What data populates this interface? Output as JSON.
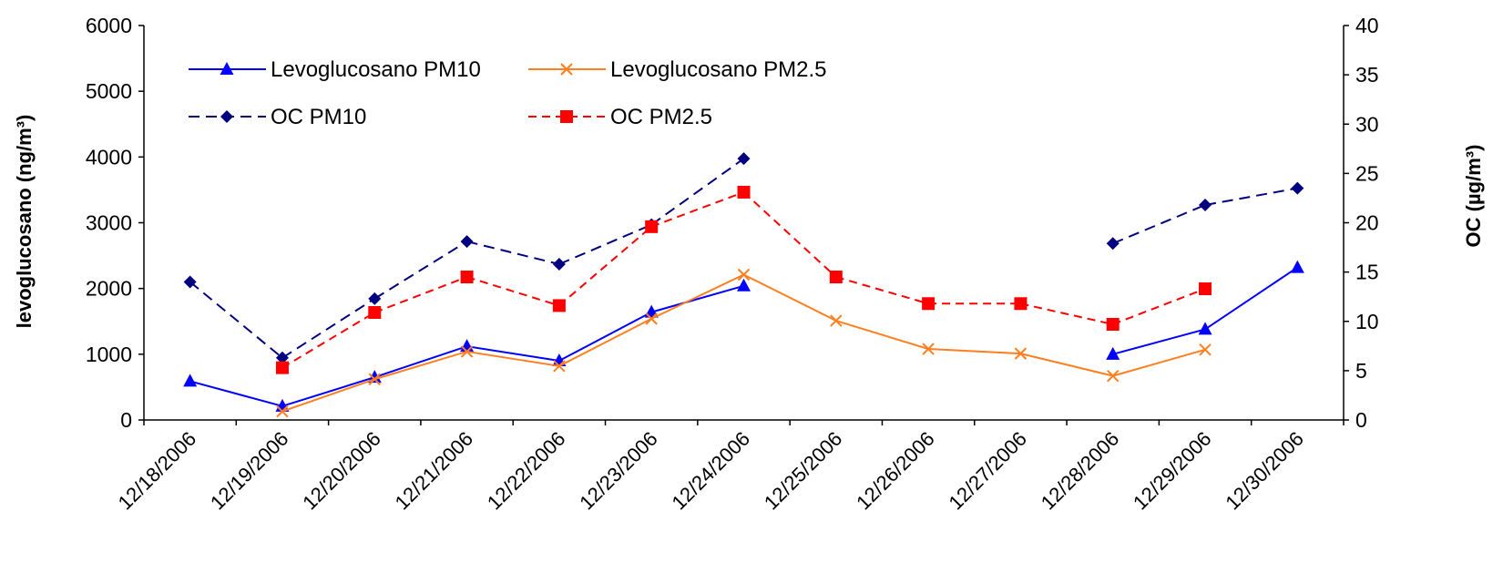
{
  "chart_data": {
    "type": "line",
    "categories": [
      "12/18/2006",
      "12/19/2006",
      "12/20/2006",
      "12/21/2006",
      "12/22/2006",
      "12/23/2006",
      "12/24/2006",
      "12/25/2006",
      "12/26/2006",
      "12/27/2006",
      "12/28/2006",
      "12/29/2006",
      "12/30/2006"
    ],
    "ylabel": "levoglucosano (ng/m³)",
    "y2label": "OC (µg/m³)",
    "ylim": [
      0,
      6000
    ],
    "y2lim": [
      0,
      40
    ],
    "yticks": [
      "0",
      "1000",
      "2000",
      "3000",
      "4000",
      "5000",
      "6000"
    ],
    "y2ticks": [
      "0",
      "5",
      "10",
      "15",
      "20",
      "25",
      "30",
      "35",
      "40"
    ],
    "grid": false,
    "legend": "top-left, inside plot area",
    "series": [
      {
        "name": "Levoglucosano PM10",
        "axis": "left",
        "color": "#0000FF",
        "marker": "triangle",
        "dash": "solid",
        "values": [
          590,
          210,
          650,
          1120,
          900,
          1640,
          2040,
          null,
          null,
          null,
          1000,
          1380,
          2320
        ]
      },
      {
        "name": "Levoglucosano PM2.5",
        "axis": "left",
        "color": "#FF7F1F",
        "marker": "x",
        "dash": "solid",
        "values": [
          null,
          130,
          620,
          1040,
          820,
          1540,
          2210,
          1510,
          1080,
          1010,
          670,
          1070,
          null
        ]
      },
      {
        "name": "OC PM10",
        "axis": "right",
        "color": "#000080",
        "marker": "diamond",
        "dash": "long-dash",
        "values": [
          14.0,
          6.3,
          12.3,
          18.1,
          15.8,
          19.8,
          26.5,
          null,
          null,
          null,
          17.9,
          21.8,
          23.5
        ]
      },
      {
        "name": "OC PM2.5",
        "axis": "right",
        "color": "#FF0000",
        "marker": "square",
        "dash": "dashed",
        "values": [
          null,
          5.3,
          10.9,
          14.5,
          11.6,
          19.6,
          23.1,
          14.5,
          11.8,
          11.8,
          9.7,
          13.3,
          null
        ]
      }
    ]
  }
}
